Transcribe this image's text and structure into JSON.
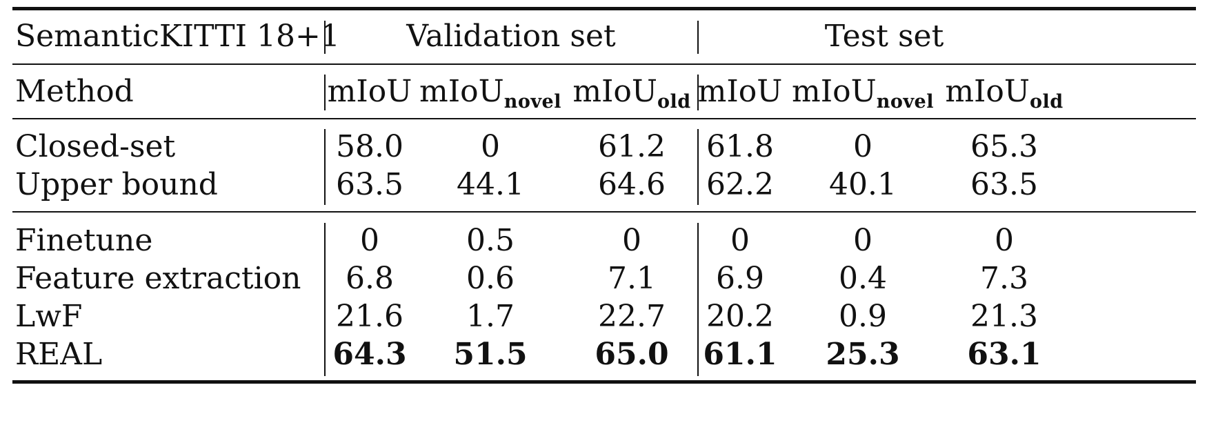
{
  "table": {
    "dataset_label": "SemanticKITTI 18+1",
    "groups": [
      "Validation set",
      "Test set"
    ],
    "method_header": "Method",
    "metric_headers": [
      {
        "base": "mIoU",
        "sub": ""
      },
      {
        "base": "mIoU",
        "sub": "novel"
      },
      {
        "base": "mIoU",
        "sub": "old"
      },
      {
        "base": "mIoU",
        "sub": ""
      },
      {
        "base": "mIoU",
        "sub": "novel"
      },
      {
        "base": "mIoU",
        "sub": "old"
      }
    ],
    "reference_rows": [
      {
        "method": "Closed-set",
        "values": [
          "58.0",
          "0",
          "61.2",
          "61.8",
          "0",
          "65.3"
        ]
      },
      {
        "method": "Upper bound",
        "values": [
          "63.5",
          "44.1",
          "64.6",
          "62.2",
          "40.1",
          "63.5"
        ]
      }
    ],
    "comparison_rows": [
      {
        "method": "Finetune",
        "values": [
          "0",
          "0.5",
          "0",
          "0",
          "0",
          "0"
        ]
      },
      {
        "method": "Feature extraction",
        "values": [
          "6.8",
          "0.6",
          "7.1",
          "6.9",
          "0.4",
          "7.3"
        ]
      },
      {
        "method": "LwF",
        "values": [
          "21.6",
          "1.7",
          "22.7",
          "20.2",
          "0.9",
          "21.3"
        ]
      },
      {
        "method": "REAL",
        "values": [
          "64.3",
          "51.5",
          "65.0",
          "61.1",
          "25.3",
          "63.1"
        ],
        "bold": true
      }
    ]
  }
}
